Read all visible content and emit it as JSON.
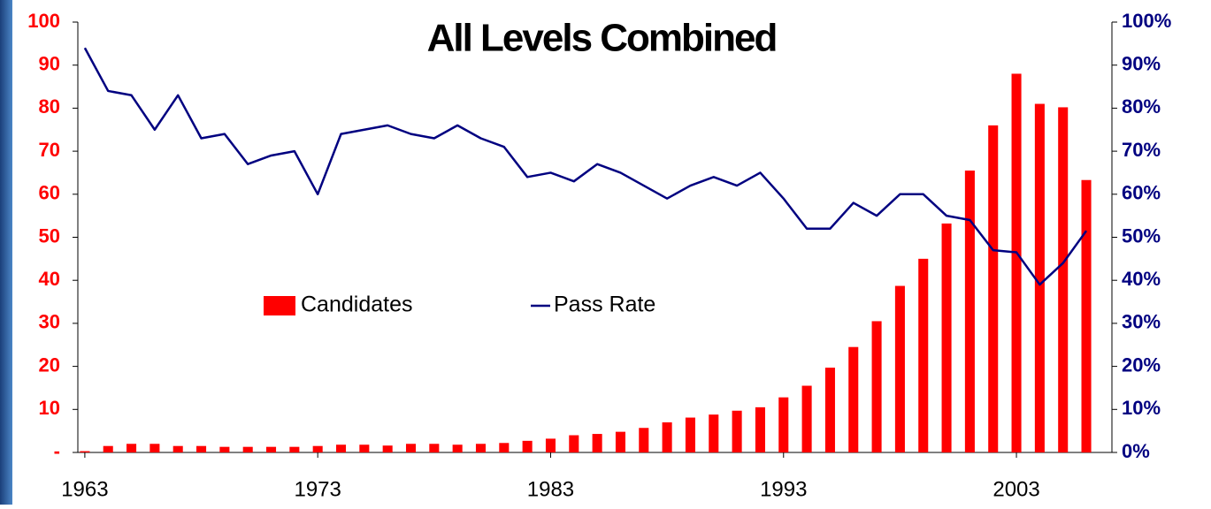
{
  "chart_data": {
    "type": "bar",
    "title": "All Levels Combined",
    "x": [
      1963,
      1964,
      1965,
      1966,
      1967,
      1968,
      1969,
      1970,
      1971,
      1972,
      1973,
      1974,
      1975,
      1976,
      1977,
      1978,
      1979,
      1980,
      1981,
      1982,
      1983,
      1984,
      1985,
      1986,
      1987,
      1988,
      1989,
      1990,
      1991,
      1992,
      1993,
      1994,
      1995,
      1996,
      1997,
      1998,
      1999,
      2000,
      2001,
      2002,
      2003,
      2004,
      2005,
      2006
    ],
    "xlim": [
      1962.7,
      2007.1
    ],
    "xticks": [
      1963,
      1973,
      1983,
      1993,
      2003
    ],
    "ylim": [
      0,
      100
    ],
    "yticks": [
      {
        "value": 0,
        "label": "-"
      },
      10,
      20,
      30,
      40,
      50,
      60,
      70,
      80,
      90,
      100
    ],
    "y2lim": [
      0,
      100
    ],
    "y2ticks": [
      {
        "value": 0,
        "label": "0%"
      },
      {
        "value": 10,
        "label": "10%"
      },
      {
        "value": 20,
        "label": "20%"
      },
      {
        "value": 30,
        "label": "30%"
      },
      {
        "value": 40,
        "label": "40%"
      },
      {
        "value": 50,
        "label": "50%"
      },
      {
        "value": 60,
        "label": "60%"
      },
      {
        "value": 70,
        "label": "70%"
      },
      {
        "value": 80,
        "label": "80%"
      },
      {
        "value": 90,
        "label": "90%"
      },
      {
        "value": 100,
        "label": "100%"
      }
    ],
    "legend_position": "center",
    "series": [
      {
        "name": "Candidates",
        "type": "bar",
        "color": "#ff0000",
        "values": [
          0.3,
          1.5,
          2,
          2,
          1.5,
          1.5,
          1.3,
          1.3,
          1.3,
          1.3,
          1.5,
          1.8,
          1.8,
          1.6,
          2,
          2,
          1.8,
          2,
          2.2,
          2.7,
          3.2,
          4,
          4.3,
          4.8,
          5.7,
          7,
          8.1,
          8.8,
          9.7,
          10.5,
          12.8,
          15.5,
          19.7,
          24.5,
          30.5,
          38.7,
          45,
          53.2,
          65.5,
          76,
          88,
          81,
          80.2,
          63.3
        ]
      },
      {
        "name": "Pass Rate",
        "type": "line",
        "axis": "y2",
        "color": "#000080",
        "values": [
          94,
          84,
          83,
          75,
          83,
          73,
          74,
          67,
          69,
          70,
          60,
          74,
          75,
          76,
          74,
          73,
          76,
          73,
          71,
          64,
          65,
          63,
          67,
          65,
          62,
          59,
          62,
          64,
          62,
          65,
          59,
          52,
          52,
          58,
          55,
          60,
          60,
          55,
          54,
          47,
          46.5,
          39,
          44,
          51.5
        ]
      }
    ]
  }
}
